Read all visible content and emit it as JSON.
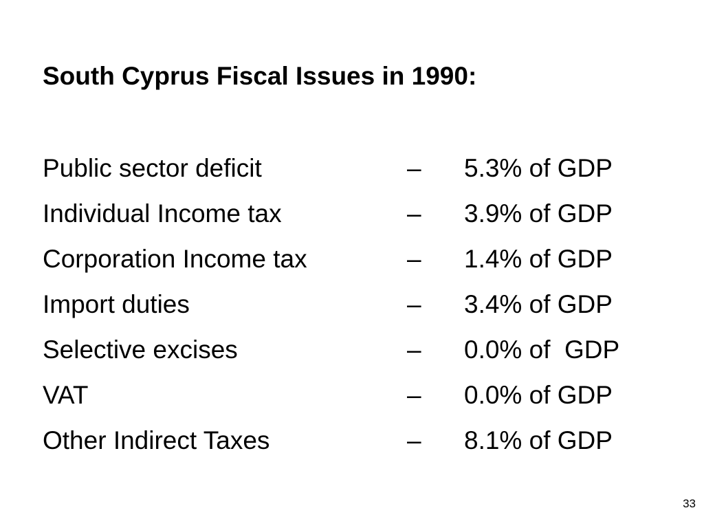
{
  "slide": {
    "title": "South Cyprus Fiscal Issues in 1990:",
    "rows": [
      {
        "label": "Public sector deficit",
        "dash": "–",
        "value": "5.3% of GDP"
      },
      {
        "label": "Individual Income tax",
        "dash": "–",
        "value": "3.9% of GDP"
      },
      {
        "label": "Corporation Income tax",
        "dash": "–",
        "value": "1.4% of GDP"
      },
      {
        "label": "Import duties",
        "dash": "–",
        "value": "3.4% of GDP"
      },
      {
        "label": "Selective excises",
        "dash": "–",
        "value": "0.0% of  GDP"
      },
      {
        "label": "VAT",
        "dash": "–",
        "value": "0.0% of GDP"
      },
      {
        "label": "Other Indirect Taxes",
        "dash": "–",
        "value": "8.1% of GDP"
      }
    ],
    "page_number": "33"
  }
}
